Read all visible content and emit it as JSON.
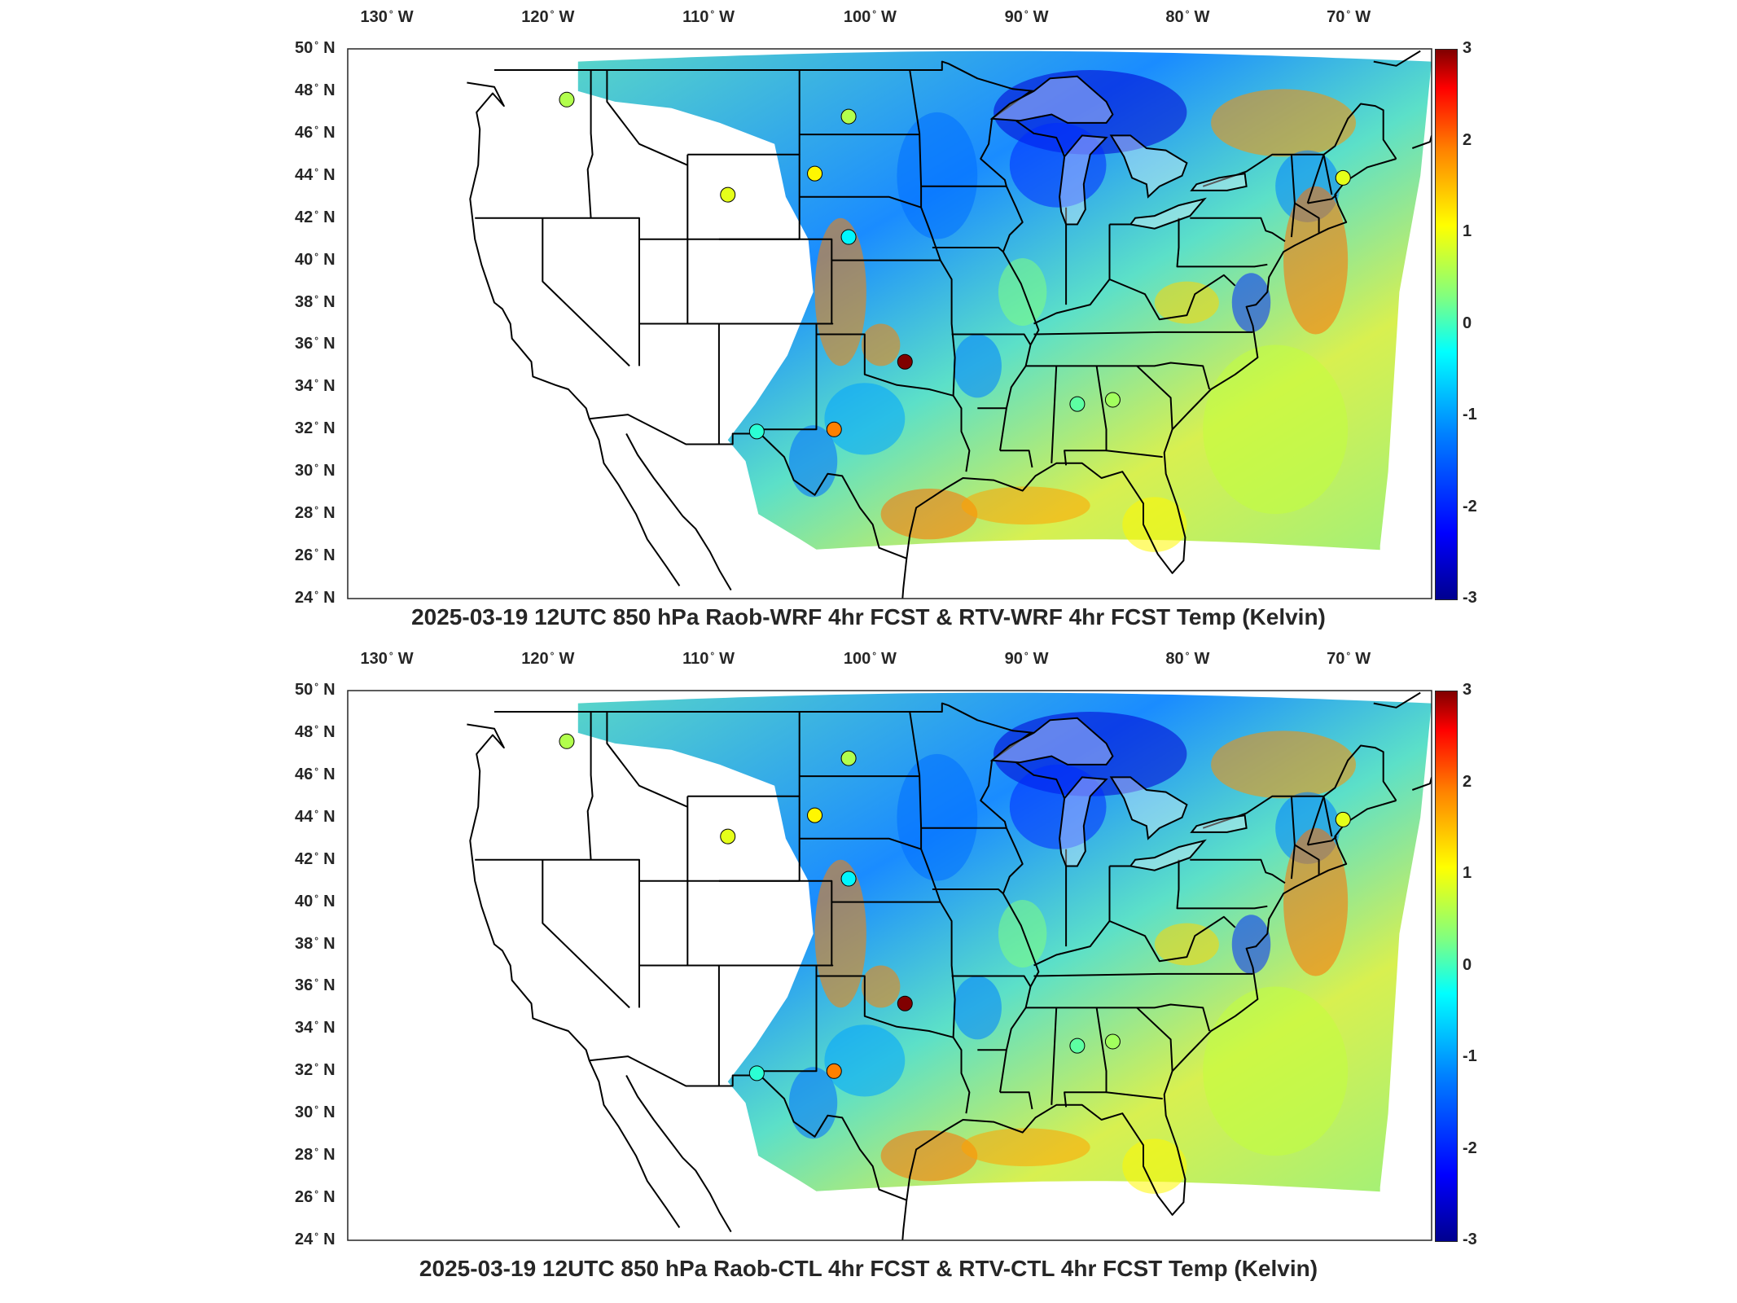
{
  "lon_labels": [
    "130",
    "120",
    "110",
    "100",
    "90",
    "80",
    "70"
  ],
  "lon_hemi": "W",
  "lat_labels": [
    "50",
    "48",
    "46",
    "44",
    "42",
    "40",
    "38",
    "36",
    "34",
    "32",
    "30",
    "28",
    "26",
    "24"
  ],
  "lat_hemi": "N",
  "deg_symbol": "°",
  "colorbar": {
    "ticks": [
      "3",
      "2",
      "1",
      "0",
      "-1",
      "-2",
      "-3"
    ],
    "min": -3,
    "max": 3,
    "colormap": "jet"
  },
  "panels": [
    {
      "title": "2025-03-19 12UTC 850 hPa Raob-WRF 4hr FCST & RTV-WRF 4hr FCST Temp (Kelvin)"
    },
    {
      "title": "2025-03-19 12UTC 850 hPa Raob-CTL 4hr FCST & RTV-CTL 4hr FCST Temp (Kelvin)"
    }
  ],
  "raob_stations": [
    {
      "lon": -118.5,
      "lat": 47.6,
      "value": 0.3
    },
    {
      "lon": -101.0,
      "lat": 46.8,
      "value": 0.3
    },
    {
      "lon": -103.1,
      "lat": 44.1,
      "value": 0.8
    },
    {
      "lon": -108.5,
      "lat": 43.1,
      "value": 0.6
    },
    {
      "lon": -101.0,
      "lat": 41.1,
      "value": -0.8
    },
    {
      "lon": -97.5,
      "lat": 35.2,
      "value": 3.0
    },
    {
      "lon": -101.9,
      "lat": 32.0,
      "value": 1.5
    },
    {
      "lon": -106.7,
      "lat": 31.9,
      "value": -0.5
    },
    {
      "lon": -86.8,
      "lat": 33.2,
      "value": -0.2
    },
    {
      "lon": -84.6,
      "lat": 33.4,
      "value": 0.2
    },
    {
      "lon": -70.3,
      "lat": 43.9,
      "value": 0.6
    }
  ]
}
